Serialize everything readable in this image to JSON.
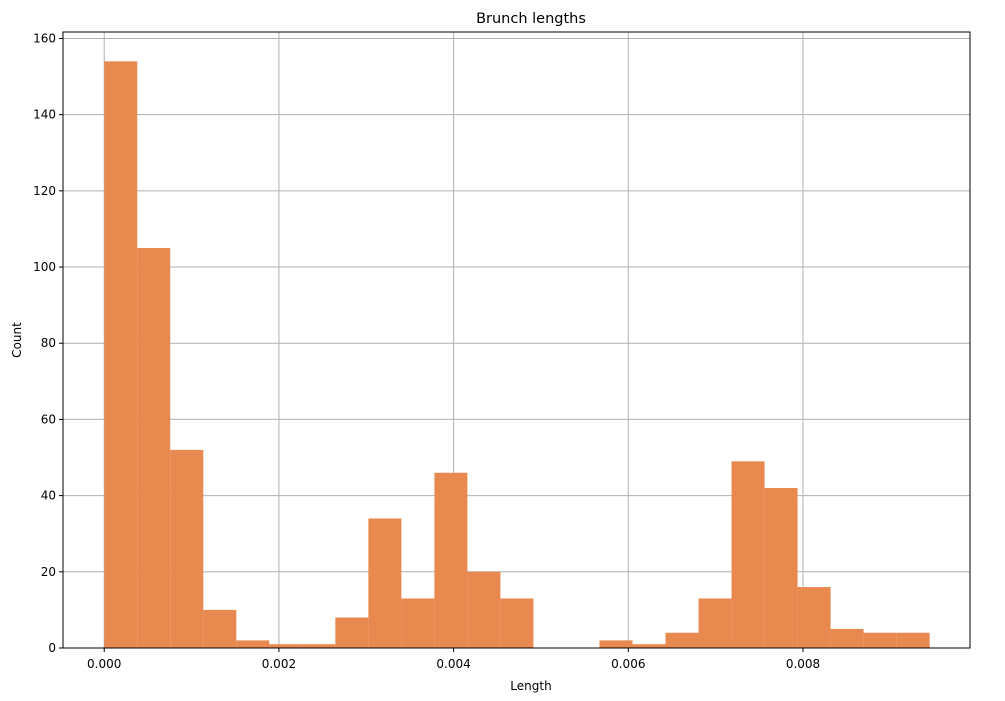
{
  "chart_data": {
    "type": "bar",
    "title": "Brunch lengths",
    "xlabel": "Length",
    "ylabel": "Count",
    "xlim": [
      -0.000472,
      0.009912
    ],
    "ylim": [
      0,
      161.7
    ],
    "grid": true,
    "bar_color": "#e8894f",
    "grid_color": "#b0b0b0",
    "xticks": [
      {
        "value": 0.0,
        "label": "0.000"
      },
      {
        "value": 0.002,
        "label": "0.002"
      },
      {
        "value": 0.004,
        "label": "0.004"
      },
      {
        "value": 0.006,
        "label": "0.006"
      },
      {
        "value": 0.008,
        "label": "0.008"
      }
    ],
    "yticks": [
      {
        "value": 0,
        "label": "0"
      },
      {
        "value": 20,
        "label": "20"
      },
      {
        "value": 40,
        "label": "40"
      },
      {
        "value": 60,
        "label": "60"
      },
      {
        "value": 80,
        "label": "80"
      },
      {
        "value": 100,
        "label": "100"
      },
      {
        "value": 120,
        "label": "120"
      },
      {
        "value": 140,
        "label": "140"
      },
      {
        "value": 160,
        "label": "160"
      }
    ],
    "bin_start": 0.0,
    "bin_width": 0.000378,
    "values": [
      154,
      105,
      52,
      10,
      2,
      1,
      1,
      8,
      34,
      13,
      46,
      20,
      13,
      0,
      0,
      2,
      1,
      4,
      13,
      49,
      42,
      16,
      5,
      4,
      4
    ]
  }
}
